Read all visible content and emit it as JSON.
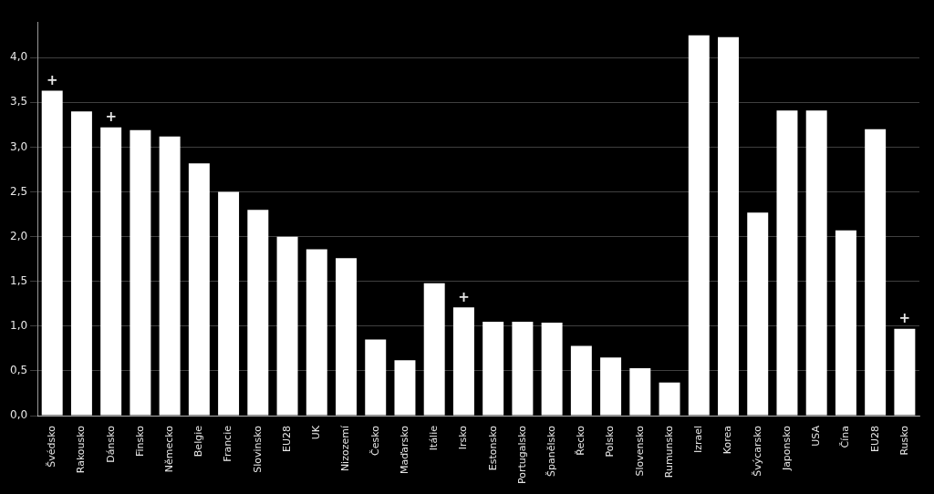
{
  "chart_data": {
    "type": "bar",
    "categories": [
      "Švédsko",
      "Rakousko",
      "Dánsko",
      "Finsko",
      "Německo",
      "Belgie",
      "Francie",
      "Slovinsko",
      "EU28",
      "UK",
      "Nizozemí",
      "Česko",
      "Maďarsko",
      "Itálie",
      "Irsko",
      "Estonsko",
      "Portugalsko",
      "Španělsko",
      "Řecko",
      "Polsko",
      "Slovensko",
      "Rumunsko",
      "Izrael",
      "Korea",
      "Švýcarsko",
      "Japonsko",
      "USA",
      "Čína",
      "EU28",
      "Rusko"
    ],
    "values": [
      3.63,
      3.4,
      3.22,
      3.19,
      3.12,
      2.82,
      2.5,
      2.3,
      2.0,
      1.86,
      1.76,
      0.85,
      0.62,
      1.48,
      1.21,
      1.05,
      1.05,
      1.04,
      0.78,
      0.65,
      0.53,
      0.37,
      4.25,
      4.23,
      2.27,
      3.41,
      3.41,
      2.07,
      3.2,
      0.97
    ],
    "color": "#ffffff",
    "ylim": [
      0,
      4.4
    ],
    "yticks": [
      {
        "value": 0.0,
        "label": "0,0"
      },
      {
        "value": 0.5,
        "label": "0,5"
      },
      {
        "value": 1.0,
        "label": "1,0"
      },
      {
        "value": 1.5,
        "label": "1,5"
      },
      {
        "value": 2.0,
        "label": "2,0"
      },
      {
        "value": 2.5,
        "label": "2,5"
      },
      {
        "value": 3.0,
        "label": "3,0"
      },
      {
        "value": 3.5,
        "label": "3,5"
      },
      {
        "value": 4.0,
        "label": "4,0"
      }
    ],
    "grid": true,
    "annotations": [
      {
        "category": "Švédsko",
        "text": "+"
      },
      {
        "category": "Dánsko",
        "text": "+"
      },
      {
        "category": "Irsko",
        "text": "+"
      },
      {
        "category": "Rusko",
        "text": "+"
      }
    ]
  }
}
